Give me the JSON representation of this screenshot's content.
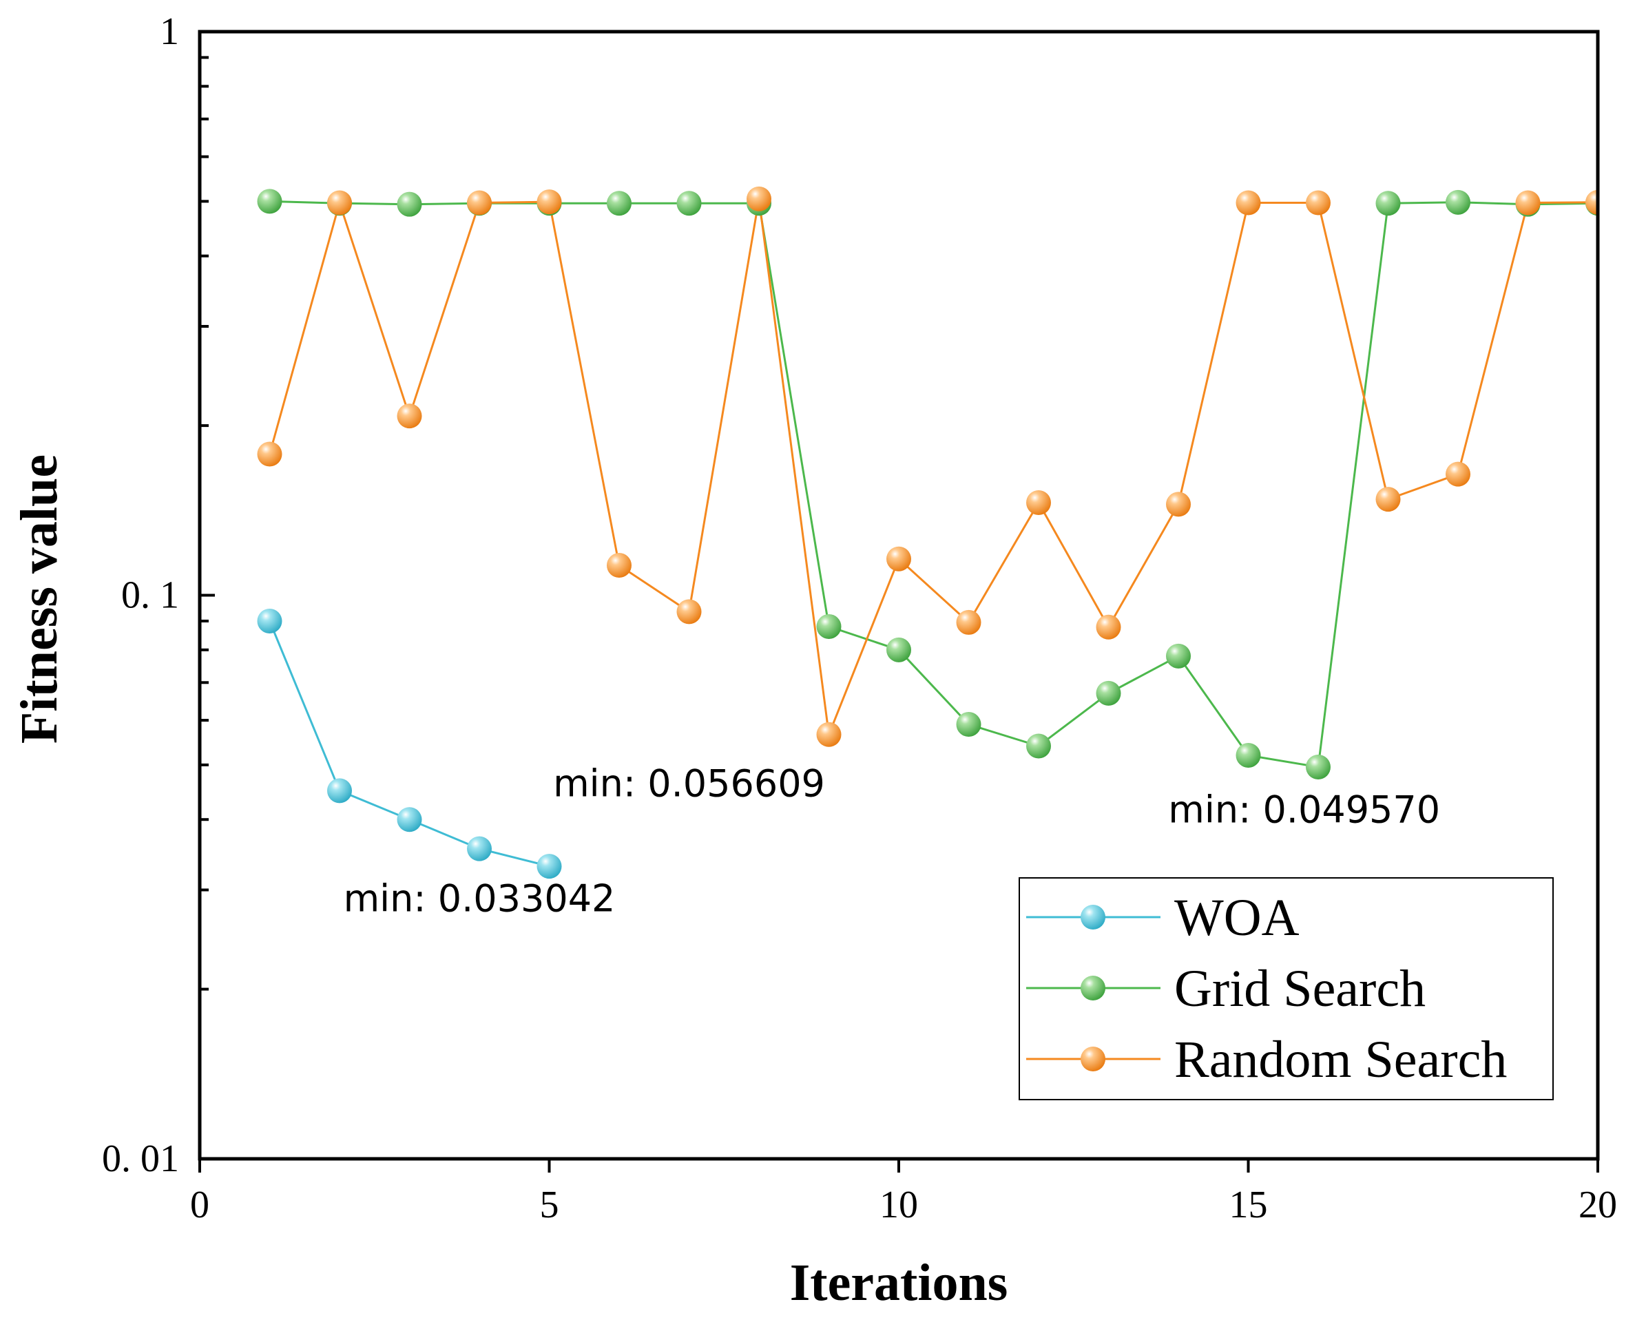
{
  "chart_data": {
    "type": "line",
    "title": "",
    "xlabel": "Iterations",
    "ylabel": "Fitness value",
    "xlim": [
      0,
      20
    ],
    "ylim": [
      0.01,
      1
    ],
    "yscale": "log",
    "xticks": [
      0,
      5,
      10,
      15,
      20
    ],
    "xtick_labels": [
      "0",
      "5",
      "10",
      "15",
      "20"
    ],
    "yticks": [
      0.01,
      0.1,
      1
    ],
    "ytick_labels": [
      "0. 01",
      "0. 1",
      "1"
    ],
    "grid": false,
    "legend_position": "bottom-right",
    "series": [
      {
        "name": "WOA",
        "color": "#3fbcd4",
        "x": [
          1,
          2,
          3,
          4,
          5
        ],
        "y": [
          0.09,
          0.045,
          0.04,
          0.0355,
          0.033042
        ]
      },
      {
        "name": "Grid Search",
        "color": "#4cb84c",
        "x": [
          1,
          2,
          3,
          4,
          5,
          6,
          7,
          8,
          9,
          10,
          11,
          12,
          13,
          14,
          15,
          16,
          17,
          18,
          19,
          20
        ],
        "y": [
          0.5,
          0.496,
          0.494,
          0.496,
          0.496,
          0.496,
          0.496,
          0.496,
          0.088,
          0.08,
          0.059,
          0.054,
          0.067,
          0.078,
          0.052,
          0.04957,
          0.496,
          0.498,
          0.494,
          0.496
        ]
      },
      {
        "name": "Random Search",
        "color": "#f5891f",
        "x": [
          1,
          2,
          3,
          4,
          5,
          6,
          7,
          8,
          9,
          10,
          11,
          12,
          13,
          14,
          15,
          16,
          17,
          18,
          19,
          20
        ],
        "y": [
          0.178,
          0.497,
          0.208,
          0.497,
          0.499,
          0.113,
          0.0935,
          0.505,
          0.056609,
          0.116,
          0.0895,
          0.146,
          0.0878,
          0.145,
          0.497,
          0.497,
          0.148,
          0.164,
          0.497,
          0.498
        ]
      }
    ],
    "annotations": [
      {
        "text": "min: 0.033042",
        "x": 4.0,
        "y": 0.0275
      },
      {
        "text": "min: 0.056609",
        "x": 7.0,
        "y": 0.044
      },
      {
        "text": "min: 0.049570",
        "x": 15.8,
        "y": 0.0395
      }
    ]
  }
}
